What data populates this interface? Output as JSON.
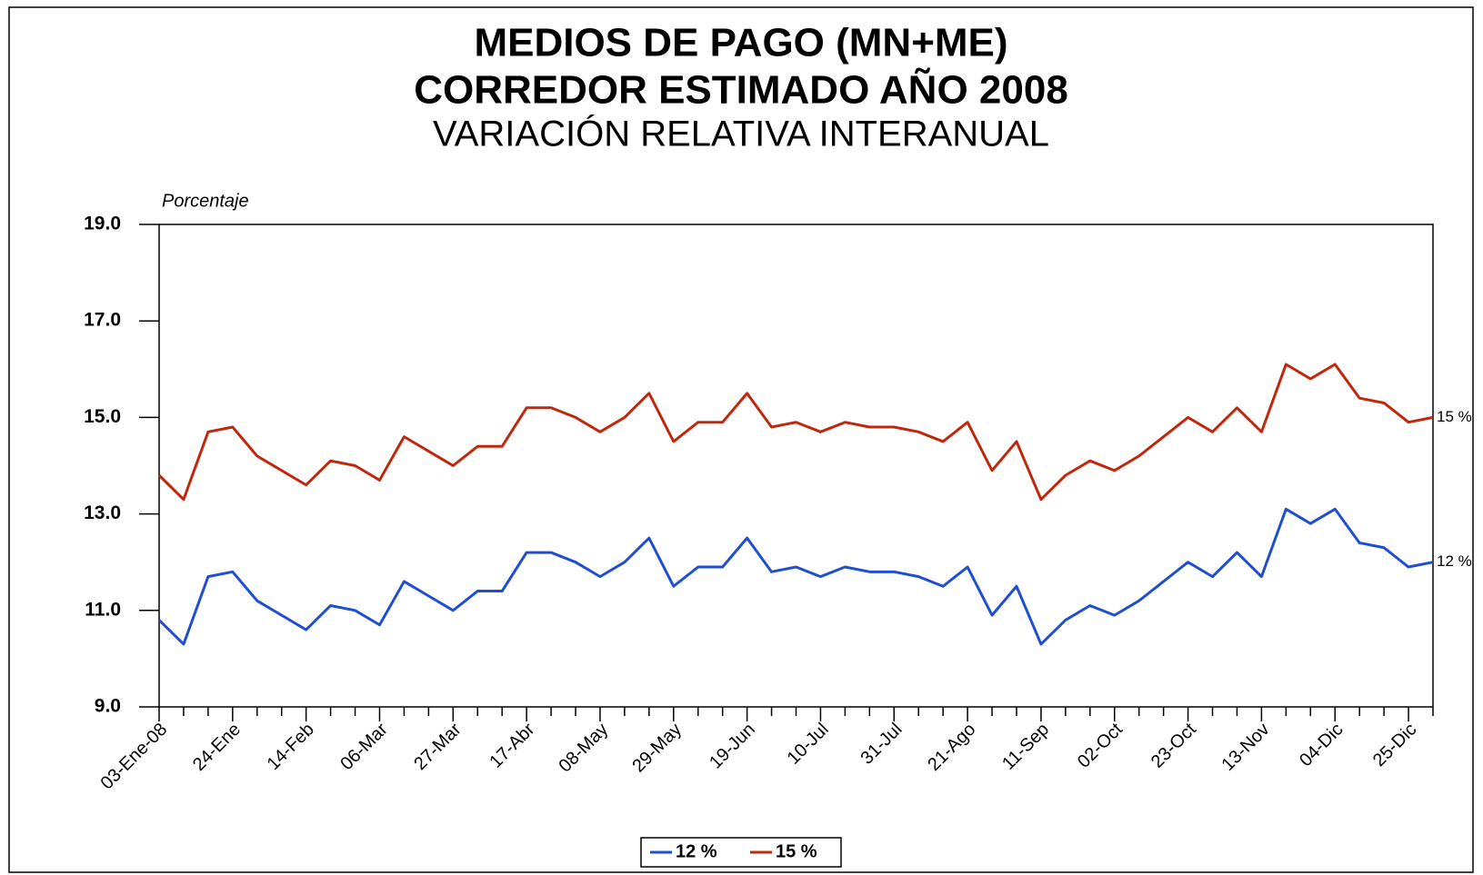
{
  "chart_data": {
    "type": "line",
    "title": "MEDIOS DE PAGO (MN+ME)",
    "subtitle": [
      "CORREDOR ESTIMADO AÑO 2008",
      "VARIACIÓN RELATIVA INTERANUAL"
    ],
    "y_label": "Porcentaje",
    "x": [
      "03-Ene-08",
      null,
      null,
      "24-Ene",
      null,
      null,
      "14-Feb",
      null,
      null,
      "06-Mar",
      null,
      null,
      "27-Mar",
      null,
      null,
      "17-Abr",
      null,
      null,
      "08-May",
      null,
      null,
      "29-May",
      null,
      null,
      "19-Jun",
      null,
      null,
      "10-Jul",
      null,
      null,
      "31-Jul",
      null,
      null,
      "21-Ago",
      null,
      null,
      "11-Sep",
      null,
      null,
      "02-Oct",
      null,
      null,
      "23-Oct",
      null,
      null,
      "13-Nov",
      null,
      null,
      "04-Dic",
      null,
      null,
      "25-Dic",
      null
    ],
    "series": [
      {
        "name": "12 %",
        "color": "#1f4fd0",
        "end_label": "12 %",
        "values": [
          10.8,
          10.3,
          11.7,
          11.8,
          11.2,
          10.9,
          10.6,
          11.1,
          11.0,
          10.7,
          11.6,
          11.3,
          11.0,
          11.4,
          11.4,
          12.2,
          12.2,
          12.0,
          11.7,
          12.0,
          12.5,
          11.5,
          11.9,
          11.9,
          12.5,
          11.8,
          11.9,
          11.7,
          11.9,
          11.8,
          11.8,
          11.7,
          11.5,
          11.9,
          10.9,
          11.5,
          10.3,
          10.8,
          11.1,
          10.9,
          11.2,
          11.6,
          12.0,
          11.7,
          12.2,
          11.7,
          13.1,
          12.8,
          13.1,
          12.4,
          12.3,
          11.9,
          12.0
        ]
      },
      {
        "name": "15 %",
        "color": "#c0280e",
        "end_label": "15 %",
        "values": [
          13.8,
          13.3,
          14.7,
          14.8,
          14.2,
          13.9,
          13.6,
          14.1,
          14.0,
          13.7,
          14.6,
          14.3,
          14.0,
          14.4,
          14.4,
          15.2,
          15.2,
          15.0,
          14.7,
          15.0,
          15.5,
          14.5,
          14.9,
          14.9,
          15.5,
          14.8,
          14.9,
          14.7,
          14.9,
          14.8,
          14.8,
          14.7,
          14.5,
          14.9,
          13.9,
          14.5,
          13.3,
          13.8,
          14.1,
          13.9,
          14.2,
          14.6,
          15.0,
          14.7,
          15.2,
          14.7,
          16.1,
          15.8,
          16.1,
          15.4,
          15.3,
          14.9,
          15.0
        ]
      }
    ],
    "ylim": [
      9,
      19
    ],
    "yticks": [
      {
        "value": 9,
        "label": "9.0"
      },
      {
        "value": 11,
        "label": "11.0"
      },
      {
        "value": 13,
        "label": "13.0"
      },
      {
        "value": 15,
        "label": "15.0"
      },
      {
        "value": 17,
        "label": "17.0"
      },
      {
        "value": 19,
        "label": "19.0"
      }
    ],
    "grid": false,
    "legend": "bottom"
  }
}
